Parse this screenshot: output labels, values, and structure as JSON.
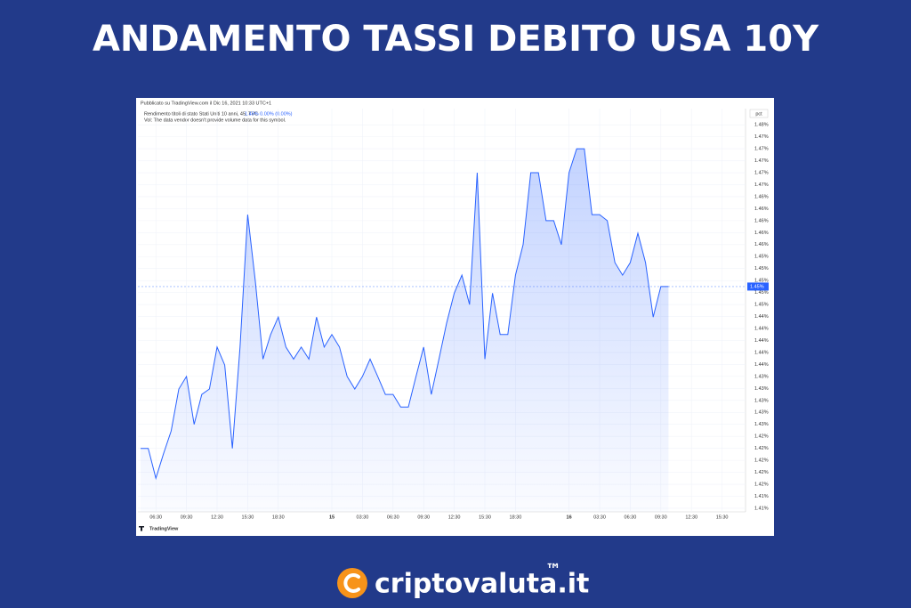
{
  "title": "ANDAMENTO TASSI DEBITO USA 10Y",
  "brand": "criptovaluta.it",
  "trademark": "™",
  "chart_data": {
    "type": "line",
    "published": "Pubblicato su TradingView.com il Dic 16, 2021 10:33 UTC+1",
    "symbol": "Rendimento titoli di stato Stati Uniti 10 anni, 45, TVC",
    "quote": "1.45% 0.00% (0.00%)",
    "volume_note": "Vol: The data vendor doesn't provide volume data for this symbol.",
    "unit_button": "pct",
    "watermark": "TradingView",
    "last_value": {
      "value": 1.449,
      "label": "1.45%"
    },
    "categories": [
      null,
      null,
      "06:30",
      null,
      null,
      null,
      "09:30",
      null,
      null,
      null,
      "12:30",
      null,
      null,
      null,
      "15:30",
      null,
      null,
      null,
      "18:30",
      null,
      null,
      null,
      null,
      null,
      null,
      "15",
      null,
      null,
      null,
      "03:30",
      null,
      null,
      null,
      "06:30",
      null,
      null,
      null,
      "09:30",
      null,
      null,
      null,
      "12:30",
      null,
      null,
      null,
      "15:30",
      null,
      null,
      null,
      "18:30",
      null,
      null,
      null,
      null,
      null,
      null,
      "16",
      null,
      null,
      null,
      "03:30",
      null,
      null,
      null,
      "06:30",
      null,
      null,
      null,
      "09:30",
      null,
      null,
      null,
      "12:30",
      null,
      null,
      null,
      "15:30",
      null
    ],
    "series": [
      {
        "name": "Rendimento titoli di stato Stati Uniti 10 anni",
        "color": "#2962ff",
        "values": [
          1.422,
          1.422,
          1.417,
          1.4211,
          1.4249,
          1.4319,
          1.434,
          1.426,
          1.431,
          1.4319,
          1.4389,
          1.4359,
          1.422,
          1.4389,
          1.461,
          1.4499,
          1.4369,
          1.441,
          1.4439,
          1.4389,
          1.4369,
          1.4389,
          1.4369,
          1.4439,
          1.4389,
          1.441,
          1.4389,
          1.434,
          1.4319,
          1.434,
          1.4369,
          1.434,
          1.431,
          1.431,
          1.4289,
          1.4289,
          1.434,
          1.4389,
          1.431,
          1.4369,
          1.4429,
          1.4479,
          1.4509,
          1.446,
          1.468,
          1.4369,
          1.4479,
          1.441,
          1.441,
          1.4509,
          1.456,
          1.468,
          1.468,
          1.46,
          1.46,
          1.456,
          1.468,
          1.472,
          1.472,
          1.461,
          1.461,
          1.46,
          1.453,
          1.4509,
          1.453,
          1.4579,
          1.453,
          1.4439,
          1.449,
          1.449,
          null,
          null,
          null,
          null,
          null,
          null,
          null,
          null
        ]
      }
    ],
    "ylim": [
      1.4114,
      1.4787
    ],
    "yticks": [
      {
        "value": 1.412,
        "label": "1.41%"
      },
      {
        "value": 1.414,
        "label": "1.41%"
      },
      {
        "value": 1.416,
        "label": "1.42%"
      },
      {
        "value": 1.418,
        "label": "1.42%"
      },
      {
        "value": 1.42,
        "label": "1.42%"
      },
      {
        "value": 1.422,
        "label": "1.42%"
      },
      {
        "value": 1.424,
        "label": "1.42%"
      },
      {
        "value": 1.426,
        "label": "1.43%"
      },
      {
        "value": 1.428,
        "label": "1.43%"
      },
      {
        "value": 1.43,
        "label": "1.43%"
      },
      {
        "value": 1.432,
        "label": "1.43%"
      },
      {
        "value": 1.434,
        "label": "1.43%"
      },
      {
        "value": 1.436,
        "label": "1.44%"
      },
      {
        "value": 1.438,
        "label": "1.44%"
      },
      {
        "value": 1.44,
        "label": "1.44%"
      },
      {
        "value": 1.442,
        "label": "1.44%"
      },
      {
        "value": 1.444,
        "label": "1.44%"
      },
      {
        "value": 1.446,
        "label": "1.45%"
      },
      {
        "value": 1.448,
        "label": "1.45%"
      },
      {
        "value": 1.45,
        "label": "1.45%"
      },
      {
        "value": 1.452,
        "label": "1.45%"
      },
      {
        "value": 1.454,
        "label": "1.45%"
      },
      {
        "value": 1.456,
        "label": "1.46%"
      },
      {
        "value": 1.458,
        "label": "1.46%"
      },
      {
        "value": 1.46,
        "label": "1.46%"
      },
      {
        "value": 1.462,
        "label": "1.46%"
      },
      {
        "value": 1.464,
        "label": "1.46%"
      },
      {
        "value": 1.466,
        "label": "1.47%"
      },
      {
        "value": 1.468,
        "label": "1.47%"
      },
      {
        "value": 1.47,
        "label": "1.47%"
      },
      {
        "value": 1.472,
        "label": "1.47%"
      },
      {
        "value": 1.474,
        "label": "1.47%"
      },
      {
        "value": 1.476,
        "label": "1.48%"
      }
    ],
    "grid": true
  }
}
